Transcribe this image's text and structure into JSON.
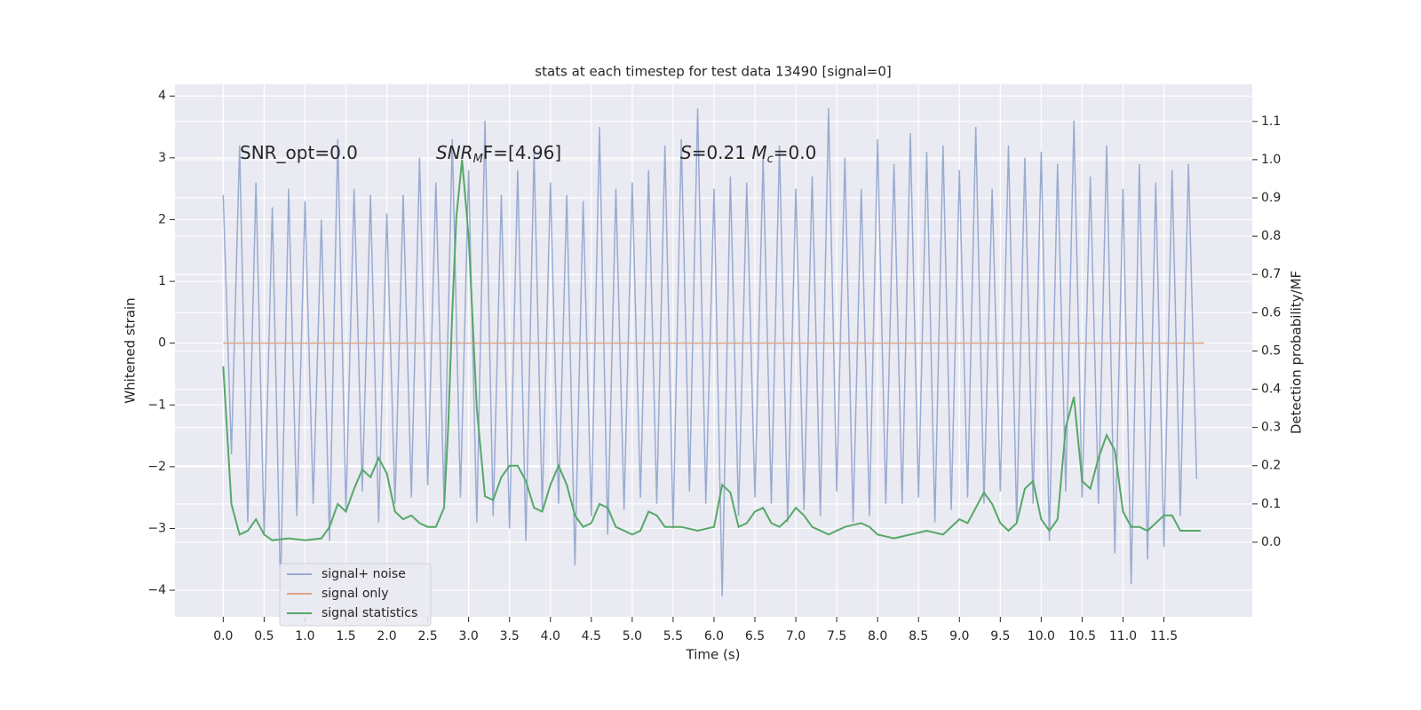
{
  "chart_data": {
    "type": "line",
    "title": "stats at each timestep for test data 13490 [signal=0]",
    "xlabel": "Time (s)",
    "ylabel": "Whitened strain",
    "y2label": "Detection probability/MF",
    "annotations": [
      {
        "parts": [
          "SNR_opt=0.0"
        ]
      },
      {
        "parts": [
          "SNR",
          "M",
          "F=[4.96]"
        ]
      },
      {
        "parts": [
          "S",
          "=0.21   ",
          "M",
          "c",
          "=0.0"
        ]
      }
    ],
    "xlim": [
      -0.59,
      12.58
    ],
    "ylim": [
      -4.43,
      4.19
    ],
    "y2lim": [
      -0.195,
      1.197
    ],
    "xticks": [
      {
        "value": 0,
        "label": "0.0"
      },
      0.5,
      {
        "value": 1,
        "label": "1.0"
      },
      1.5,
      {
        "value": 2,
        "label": "2.0"
      },
      2.5,
      {
        "value": 3,
        "label": "3.0"
      },
      3.5,
      {
        "value": 4,
        "label": "4.0"
      },
      4.5,
      {
        "value": 5,
        "label": "5.0"
      },
      5.5,
      {
        "value": 6,
        "label": "6.0"
      },
      6.5,
      {
        "value": 7,
        "label": "7.0"
      },
      7.5,
      {
        "value": 8,
        "label": "8.0"
      },
      8.5,
      {
        "value": 9,
        "label": "9.0"
      },
      9.5,
      {
        "value": 10,
        "label": "10.0"
      },
      10.5,
      {
        "value": 11,
        "label": "11.0"
      },
      11.5
    ],
    "yticks": [
      {
        "value": -4,
        "label": "−4"
      },
      {
        "value": -3,
        "label": "−3"
      },
      {
        "value": -2,
        "label": "−2"
      },
      {
        "value": -1,
        "label": "−1"
      },
      0,
      1,
      2,
      3,
      4
    ],
    "y2ticks": [
      {
        "value": 0,
        "label": "0.0"
      },
      0.1,
      0.2,
      0.3,
      0.4,
      0.5,
      0.6,
      0.7,
      0.8,
      0.9,
      {
        "value": 1,
        "label": "1.0"
      },
      1.1
    ],
    "grid": true,
    "legend": "lower left",
    "series": [
      {
        "name": "signal+ noise",
        "color": "#9aabd0",
        "axis": "y",
        "x": [
          0,
          0.1,
          0.2,
          0.3,
          0.4,
          0.5,
          0.6,
          0.7,
          0.8,
          0.9,
          1,
          1.1,
          1.2,
          1.3,
          1.4,
          1.5,
          1.6,
          1.7,
          1.8,
          1.9,
          2,
          2.1,
          2.2,
          2.3,
          2.4,
          2.5,
          2.6,
          2.7,
          2.8,
          2.9,
          3,
          3.1,
          3.2,
          3.3,
          3.4,
          3.5,
          3.6,
          3.7,
          3.8,
          3.9,
          4,
          4.1,
          4.2,
          4.3,
          4.4,
          4.5,
          4.6,
          4.7,
          4.8,
          4.9,
          5,
          5.1,
          5.2,
          5.3,
          5.4,
          5.5,
          5.6,
          5.7,
          5.8,
          5.9,
          6,
          6.1,
          6.2,
          6.3,
          6.4,
          6.5,
          6.6,
          6.7,
          6.8,
          6.9,
          7,
          7.1,
          7.2,
          7.3,
          7.4,
          7.5,
          7.6,
          7.7,
          7.8,
          7.9,
          8,
          8.1,
          8.2,
          8.3,
          8.4,
          8.5,
          8.6,
          8.7,
          8.8,
          8.9,
          9,
          9.1,
          9.2,
          9.3,
          9.4,
          9.5,
          9.6,
          9.7,
          9.8,
          9.9,
          10,
          10.1,
          10.2,
          10.3,
          10.4,
          10.5,
          10.6,
          10.7,
          10.8,
          10.9,
          11,
          11.1,
          11.2,
          11.3,
          11.4,
          11.5,
          11.6,
          11.7,
          11.8,
          11.9
        ],
        "values": [
          2.4,
          -1.8,
          3.2,
          -2.9,
          2.6,
          -3.1,
          2.2,
          -4.0,
          2.5,
          -2.8,
          2.3,
          -2.6,
          2.0,
          -3.2,
          3.3,
          -2.7,
          2.5,
          -2.4,
          2.4,
          -2.9,
          2.1,
          -2.6,
          2.4,
          -2.5,
          3.0,
          -2.3,
          2.6,
          -2.6,
          3.3,
          -2.5,
          2.8,
          -2.9,
          3.6,
          -2.8,
          2.4,
          -3.0,
          2.8,
          -3.2,
          3.1,
          -2.7,
          2.6,
          -2.6,
          2.4,
          -3.6,
          2.3,
          -2.8,
          3.5,
          -3.1,
          2.5,
          -2.7,
          2.6,
          -2.5,
          2.8,
          -2.6,
          3.2,
          -3.0,
          3.3,
          -2.4,
          3.8,
          -2.6,
          2.5,
          -4.1,
          2.7,
          -2.8,
          2.6,
          -2.5,
          3.0,
          -2.6,
          3.2,
          -2.9,
          2.5,
          -2.7,
          2.7,
          -2.8,
          3.8,
          -2.4,
          3.0,
          -2.9,
          2.5,
          -2.8,
          3.3,
          -2.6,
          2.9,
          -2.6,
          3.4,
          -2.5,
          3.1,
          -2.9,
          3.2,
          -2.7,
          2.8,
          -2.5,
          3.5,
          -2.6,
          2.5,
          -2.4,
          3.2,
          -2.9,
          3.0,
          -2.6,
          3.1,
          -3.2,
          2.9,
          -2.4,
          3.6,
          -2.5,
          2.7,
          -2.6,
          3.2,
          -3.4,
          2.5,
          -3.9,
          2.9,
          -3.5,
          2.6,
          -3.3,
          2.8,
          -2.8,
          2.9,
          -2.2
        ]
      },
      {
        "name": "signal only",
        "color": "#e0a488",
        "axis": "y",
        "x": [
          0,
          11.99
        ],
        "values": [
          0,
          0
        ]
      },
      {
        "name": "signal statistics",
        "color": "#55a868",
        "axis": "y2",
        "x": [
          0,
          0.1,
          0.2,
          0.3,
          0.4,
          0.5,
          0.6,
          0.8,
          1.0,
          1.2,
          1.3,
          1.4,
          1.5,
          1.6,
          1.7,
          1.8,
          1.9,
          2.0,
          2.1,
          2.2,
          2.3,
          2.4,
          2.5,
          2.6,
          2.7,
          2.75,
          2.8,
          2.85,
          2.92,
          3.0,
          3.1,
          3.2,
          3.3,
          3.4,
          3.5,
          3.6,
          3.7,
          3.8,
          3.9,
          4.0,
          4.1,
          4.2,
          4.3,
          4.4,
          4.5,
          4.6,
          4.7,
          4.8,
          4.9,
          5.0,
          5.1,
          5.2,
          5.3,
          5.4,
          5.6,
          5.8,
          6.0,
          6.1,
          6.2,
          6.3,
          6.4,
          6.5,
          6.6,
          6.7,
          6.8,
          6.9,
          7.0,
          7.1,
          7.2,
          7.4,
          7.6,
          7.8,
          7.9,
          8.0,
          8.2,
          8.4,
          8.6,
          8.8,
          8.9,
          9.0,
          9.1,
          9.2,
          9.3,
          9.4,
          9.5,
          9.6,
          9.7,
          9.8,
          9.9,
          10.0,
          10.1,
          10.2,
          10.3,
          10.4,
          10.5,
          10.6,
          10.7,
          10.8,
          10.9,
          11.0,
          11.1,
          11.2,
          11.3,
          11.4,
          11.5,
          11.6,
          11.7,
          11.95
        ],
        "values": [
          0.46,
          0.1,
          0.02,
          0.03,
          0.06,
          0.02,
          0.005,
          0.01,
          0.005,
          0.01,
          0.04,
          0.1,
          0.08,
          0.14,
          0.19,
          0.17,
          0.22,
          0.18,
          0.08,
          0.06,
          0.07,
          0.05,
          0.04,
          0.04,
          0.09,
          0.3,
          0.6,
          0.85,
          1.0,
          0.8,
          0.35,
          0.12,
          0.11,
          0.17,
          0.2,
          0.2,
          0.16,
          0.09,
          0.08,
          0.15,
          0.2,
          0.15,
          0.07,
          0.04,
          0.05,
          0.1,
          0.09,
          0.04,
          0.03,
          0.02,
          0.03,
          0.08,
          0.07,
          0.04,
          0.04,
          0.03,
          0.04,
          0.15,
          0.13,
          0.04,
          0.05,
          0.08,
          0.09,
          0.05,
          0.04,
          0.06,
          0.09,
          0.07,
          0.04,
          0.02,
          0.04,
          0.05,
          0.04,
          0.02,
          0.01,
          0.02,
          0.03,
          0.02,
          0.04,
          0.06,
          0.05,
          0.09,
          0.13,
          0.1,
          0.05,
          0.03,
          0.05,
          0.14,
          0.16,
          0.06,
          0.03,
          0.06,
          0.3,
          0.38,
          0.16,
          0.14,
          0.22,
          0.28,
          0.24,
          0.08,
          0.04,
          0.04,
          0.03,
          0.05,
          0.07,
          0.07,
          0.03,
          0.03
        ]
      }
    ]
  }
}
